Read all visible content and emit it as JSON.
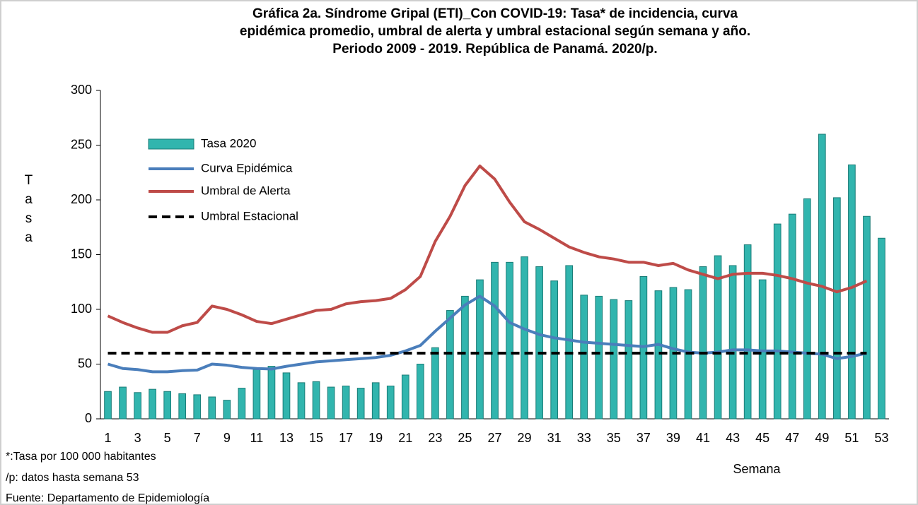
{
  "chart_data": {
    "type": "bar_line",
    "title": [
      "Gráfica 2a. Síndrome Gripal (ETI)_Con COVID-19: Tasa* de incidencia, curva",
      "epidémica promedio, umbral de alerta y umbral estacional según semana y año.",
      "Periodo 2009 - 2019.  República de Panamá. 2020/p."
    ],
    "y_label": "Tasa",
    "x_label": "Semana",
    "notes": [
      "*:Tasa por 100 000 habitantes",
      "/p: datos hasta semana 53",
      "Fuente: Departamento de Epidemiología"
    ],
    "categories": [
      "1",
      null,
      "3",
      null,
      "5",
      null,
      "7",
      null,
      "9",
      null,
      "11",
      null,
      "13",
      null,
      "15",
      null,
      "17",
      null,
      "19",
      null,
      "21",
      null,
      "23",
      null,
      "25",
      null,
      "27",
      null,
      "29",
      null,
      "31",
      null,
      "33",
      null,
      "35",
      null,
      "37",
      null,
      "39",
      null,
      "41",
      null,
      "43",
      null,
      "45",
      null,
      "47",
      null,
      "49",
      null,
      "51",
      null,
      "53"
    ],
    "series": [
      {
        "name": "Tasa 2020",
        "kind": "bar",
        "color": "#31b5ae",
        "values": [
          25,
          29,
          24,
          27,
          25,
          23,
          22,
          20,
          17,
          28,
          45,
          48,
          42,
          33,
          34,
          29,
          30,
          28,
          33,
          30,
          40,
          50,
          65,
          99,
          112,
          127,
          143,
          143,
          148,
          139,
          126,
          140,
          113,
          112,
          109,
          108,
          130,
          117,
          120,
          118,
          139,
          149,
          140,
          159,
          127,
          178,
          187,
          201,
          260,
          202,
          232,
          185,
          165
        ]
      },
      {
        "name": "Curva Epidémica",
        "kind": "line",
        "color": "#4a7ebb",
        "values": [
          50,
          46,
          45,
          43,
          43,
          44,
          44.5,
          50,
          49,
          47,
          46,
          45.5,
          48,
          50,
          52,
          53,
          54,
          55,
          56,
          58,
          62,
          67,
          80,
          92,
          104,
          112,
          103,
          88,
          82,
          77,
          74,
          72,
          70,
          69,
          68,
          67,
          66,
          68,
          64,
          61,
          60,
          61,
          63,
          63,
          62,
          62,
          61,
          60,
          59,
          55,
          57,
          60,
          null
        ]
      },
      {
        "name": "Umbral de Alerta",
        "kind": "line",
        "color": "#be4b48",
        "values": [
          94,
          88,
          83,
          79,
          79,
          85,
          88,
          103,
          100,
          95,
          89,
          87,
          91,
          95,
          99,
          100,
          105,
          107,
          108,
          110,
          118,
          130,
          162,
          185,
          213,
          231,
          219,
          198,
          180,
          173,
          165,
          157,
          152,
          148,
          146,
          143,
          143,
          140,
          142,
          136,
          132,
          128,
          132,
          133,
          133,
          131,
          128,
          124,
          121,
          116,
          120,
          126,
          null
        ]
      },
      {
        "name": "Umbral Estacional",
        "kind": "dashed",
        "color": "#000000",
        "values": [
          60,
          60,
          60,
          60,
          60,
          60,
          60,
          60,
          60,
          60,
          60,
          60,
          60,
          60,
          60,
          60,
          60,
          60,
          60,
          60,
          60,
          60,
          60,
          60,
          60,
          60,
          60,
          60,
          60,
          60,
          60,
          60,
          60,
          60,
          60,
          60,
          60,
          60,
          60,
          60,
          60,
          60,
          60,
          60,
          60,
          60,
          60,
          60,
          60,
          60,
          60,
          60,
          null
        ]
      }
    ],
    "ylim": [
      0,
      300
    ],
    "yticks": [
      0,
      50,
      100,
      150,
      200,
      250,
      300
    ],
    "grid": false,
    "legend": "upper left"
  }
}
